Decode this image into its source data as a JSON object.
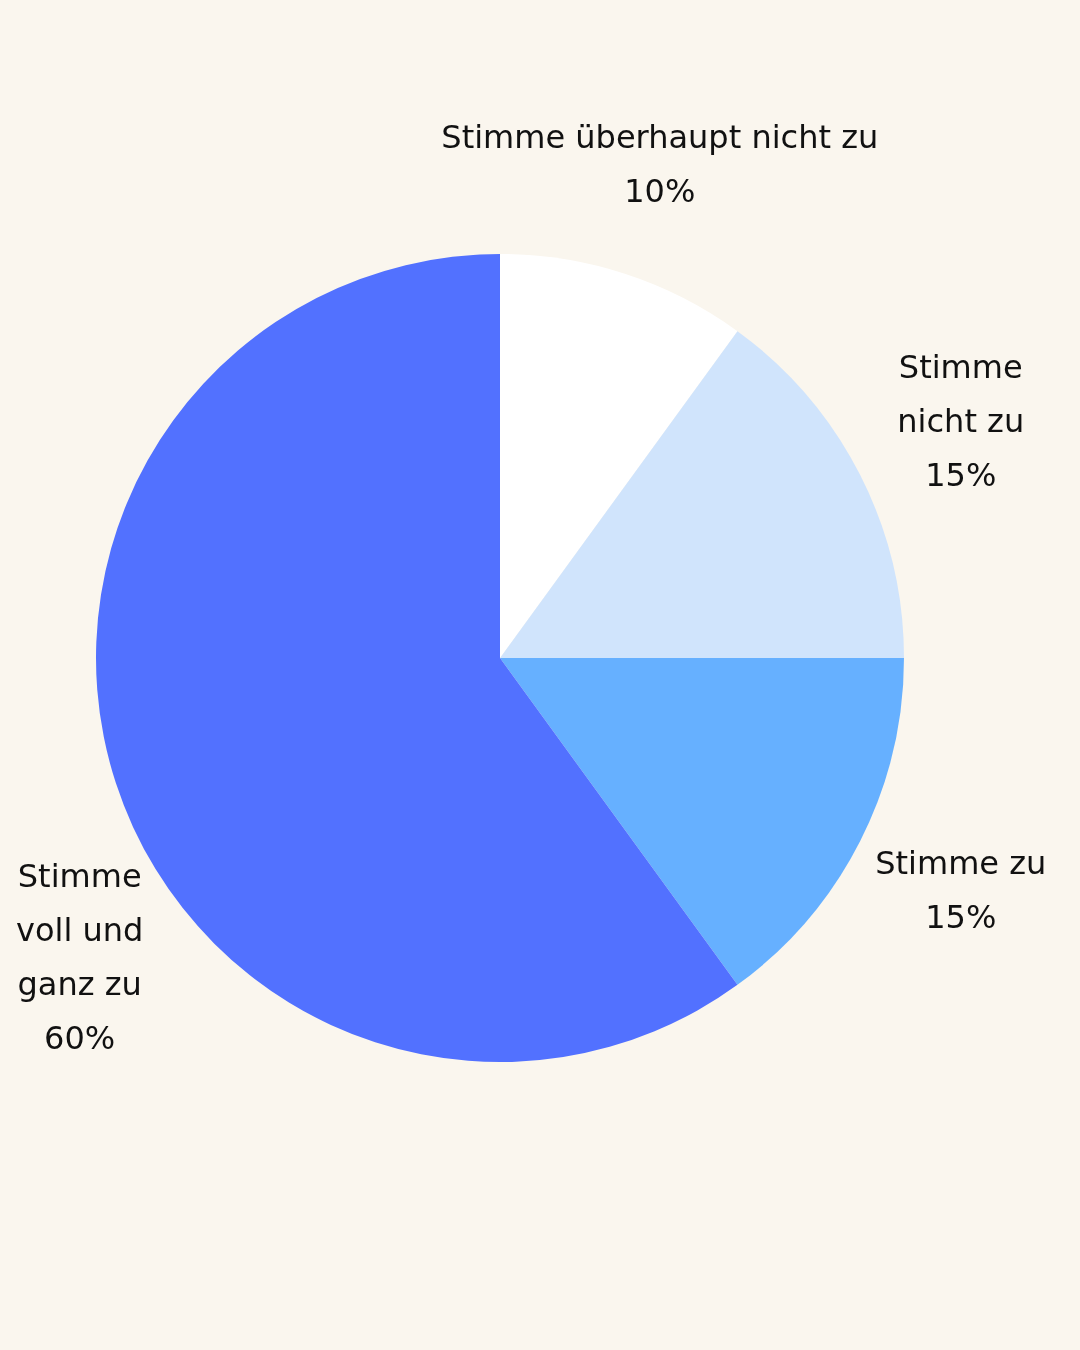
{
  "chart_data": {
    "type": "pie",
    "categories": [
      "Stimme überhaupt nicht zu",
      "Stimme nicht zu",
      "Stimme zu",
      "Stimme voll und ganz zu"
    ],
    "values": [
      10,
      15,
      15,
      60
    ],
    "value_labels": [
      "10%",
      "15%",
      "15%",
      "60%"
    ],
    "colors": [
      "#ffffff",
      "#d0e4fc",
      "#66b0ff",
      "#5271ff"
    ],
    "legend": false
  }
}
